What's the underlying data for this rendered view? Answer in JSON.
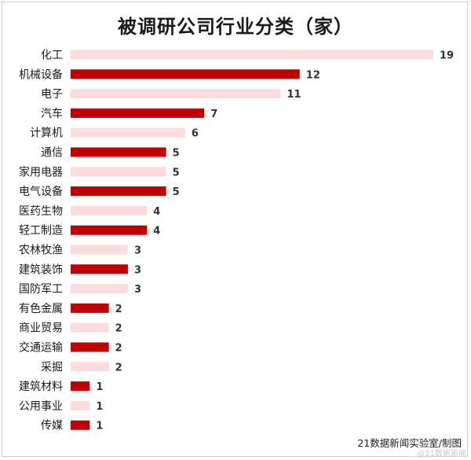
{
  "chart_data": {
    "type": "bar",
    "orientation": "horizontal",
    "title": "被调研公司行业分类（家）",
    "categories": [
      "化工",
      "机械设备",
      "电子",
      "汽车",
      "计算机",
      "通信",
      "家用电器",
      "电气设备",
      "医药生物",
      "轻工制造",
      "农林牧渔",
      "建筑装饰",
      "国防军工",
      "有色金属",
      "商业贸易",
      "交通运输",
      "采掘",
      "建筑材料",
      "公用事业",
      "传媒"
    ],
    "values": [
      19,
      12,
      11,
      7,
      6,
      5,
      5,
      5,
      4,
      4,
      3,
      3,
      3,
      2,
      2,
      2,
      2,
      1,
      1,
      1
    ],
    "bar_colors": [
      "#fcdcdc",
      "#c00000",
      "#fcdcdc",
      "#c00000",
      "#fcdcdc",
      "#c00000",
      "#fcdcdc",
      "#c00000",
      "#fcdcdc",
      "#c00000",
      "#fcdcdc",
      "#c00000",
      "#fcdcdc",
      "#c00000",
      "#fcdcdc",
      "#c00000",
      "#fcdcdc",
      "#c00000",
      "#fcdcdc",
      "#c00000"
    ],
    "grid": false,
    "legend": "none",
    "xlim": [
      0,
      19
    ]
  },
  "source": "21数据新闻实验室/制图",
  "watermark": "@21数据新闻"
}
